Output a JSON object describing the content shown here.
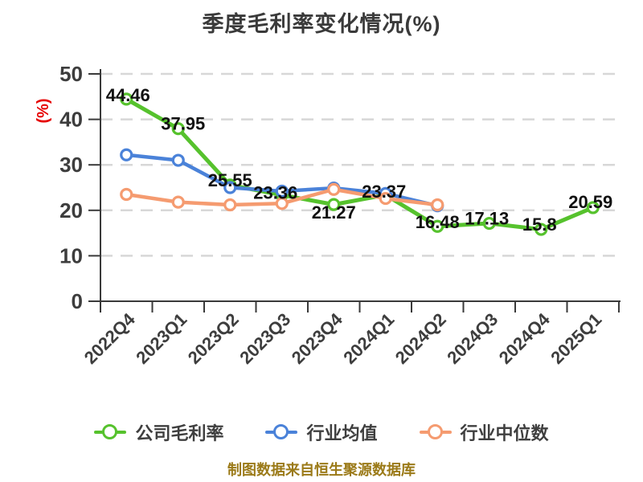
{
  "title": "季度毛利率变化情况(%)",
  "footer": "制图数据来自恒生聚源数据库",
  "colors": {
    "background": "#ffffff",
    "title_text": "#3a3a3a",
    "axis_line": "#3a3a3a",
    "axis_text": "#3d3d3d",
    "grid_line": "#d7d7d7",
    "data_label": "#111111",
    "y_axis_name_red": "#e60000",
    "footer_text": "#9b7a18",
    "series_company_green": "#56c22d",
    "series_mean_blue": "#4a82d9",
    "series_median_orange": "#f59b70"
  },
  "chart_data": {
    "type": "line",
    "title": "季度毛利率变化情况(%)",
    "xlabel": "",
    "ylabel": "(%)",
    "ylim": [
      0,
      50
    ],
    "yticks": [
      0,
      10,
      20,
      30,
      40,
      50
    ],
    "grid": "horizontal dashed",
    "legend_position": "bottom",
    "categories": [
      "2022Q4",
      "2023Q1",
      "2023Q2",
      "2023Q3",
      "2023Q4",
      "2024Q1",
      "2024Q2",
      "2024Q3",
      "2024Q4",
      "2025Q1"
    ],
    "series": [
      {
        "name": "公司毛利率",
        "color": "#56c22d",
        "values": [
          44.46,
          37.95,
          25.55,
          23.36,
          21.27,
          23.37,
          16.48,
          17.13,
          15.8,
          20.59
        ],
        "point_labels": [
          "44.46",
          "37.95",
          "25.55",
          "23.36",
          "21.27",
          "23.37",
          "16.48",
          "17.13",
          "15.8",
          "20.59"
        ],
        "label_offsets": [
          [
            2,
            -5
          ],
          [
            6,
            -6
          ],
          [
            0,
            -6
          ],
          [
            -8,
            -3
          ],
          [
            0,
            10
          ],
          [
            -2,
            -4
          ],
          [
            0,
            -5
          ],
          [
            -3,
            -6
          ],
          [
            -2,
            -6
          ],
          [
            -3,
            -7
          ]
        ]
      },
      {
        "name": "行业均值",
        "color": "#4a82d9",
        "values": [
          32.2,
          31.0,
          25.0,
          24.2,
          24.9,
          23.7,
          21.0
        ],
        "point_labels": []
      },
      {
        "name": "行业中位数",
        "color": "#f59b70",
        "values": [
          23.5,
          21.8,
          21.2,
          21.5,
          24.6,
          22.6,
          21.2
        ],
        "point_labels": []
      }
    ]
  }
}
